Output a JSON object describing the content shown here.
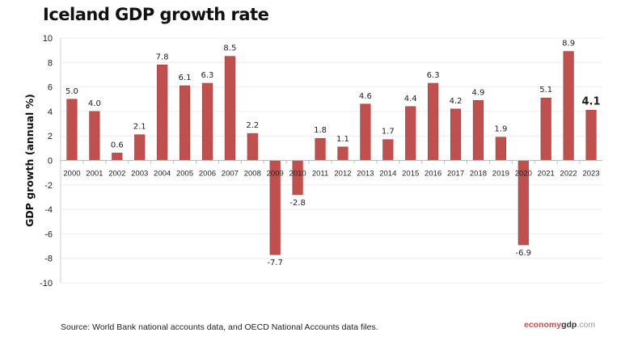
{
  "chart_data": {
    "type": "bar",
    "title": "Iceland GDP growth rate",
    "xlabel": "",
    "ylabel": "GDP growth (annual %)",
    "ylim": [
      -10,
      10
    ],
    "yticks": [
      10,
      8,
      6,
      4,
      2,
      0,
      -2,
      -4,
      -6,
      -8,
      -10
    ],
    "grid": true,
    "categories": [
      "2000",
      "2001",
      "2002",
      "2003",
      "2004",
      "2005",
      "2006",
      "2007",
      "2008",
      "2009",
      "2010",
      "2011",
      "2012",
      "2013",
      "2014",
      "2015",
      "2016",
      "2017",
      "2018",
      "2019",
      "2020",
      "2021",
      "2022",
      "2023"
    ],
    "values": [
      5.0,
      4.0,
      0.6,
      2.1,
      7.8,
      6.1,
      6.3,
      8.5,
      2.2,
      -7.7,
      -2.8,
      1.8,
      1.1,
      4.6,
      1.7,
      4.4,
      6.3,
      4.2,
      4.9,
      1.9,
      -6.9,
      5.1,
      8.9,
      4.1
    ],
    "labels": [
      "5.0",
      "4.0",
      "0.6",
      "2.1",
      "7.8",
      "6.1",
      "6.3",
      "8.5",
      "2.2",
      "-7.7",
      "-2.8",
      "1.8",
      "1.1",
      "4.6",
      "1.7",
      "4.4",
      "6.3",
      "4.2",
      "4.9",
      "1.9",
      "-6.9",
      "5.1",
      "8.9",
      "4.1"
    ],
    "bar_color": "#c0504d"
  },
  "source": "Source: World Bank national accounts data, and OECD National Accounts data files.",
  "logo": {
    "a": "economy",
    "b": "gdp",
    "c": ".com"
  }
}
